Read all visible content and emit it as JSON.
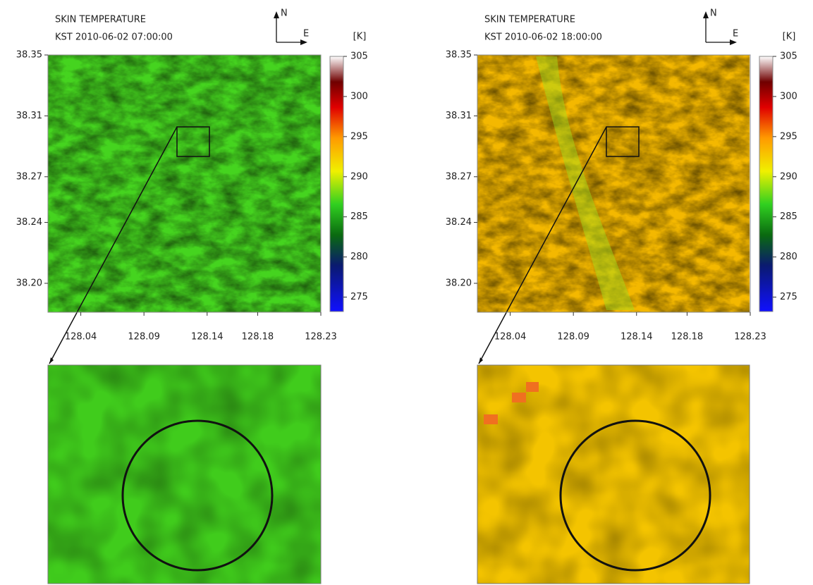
{
  "panels": [
    {
      "title": "SKIN TEMPERATURE",
      "time": "KST  2010-06-02   07:00:00",
      "units": "[K]",
      "north": "N",
      "east": "E",
      "clim": [
        273.2,
        305
      ],
      "cticks": [
        275,
        280,
        285,
        290,
        295,
        300,
        305
      ],
      "xlim": [
        128.014,
        128.23
      ],
      "xticks": [
        128.04,
        128.09,
        128.14,
        128.18,
        128.23
      ],
      "ylim": [
        38.181,
        38.35
      ],
      "yticks": [
        {
          "value": 38.2,
          "label": "38.20"
        },
        38.24,
        38.27,
        38.31,
        38.35
      ]
    },
    {
      "title": "SKIN TEMPERATURE",
      "time": "KST  2010-06-02   18:00:00",
      "units": "[K]",
      "north": "N",
      "east": "E",
      "clim": [
        273.2,
        305
      ],
      "cticks": [
        275,
        280,
        285,
        290,
        295,
        300,
        305
      ],
      "xlim": [
        128.014,
        128.23
      ],
      "xticks": [
        128.04,
        128.09,
        128.14,
        128.18,
        128.23
      ],
      "ylim": [
        38.181,
        38.35
      ],
      "yticks": [
        {
          "value": 38.2,
          "label": "38.20"
        },
        38.24,
        38.27,
        38.31,
        38.35
      ]
    }
  ]
}
